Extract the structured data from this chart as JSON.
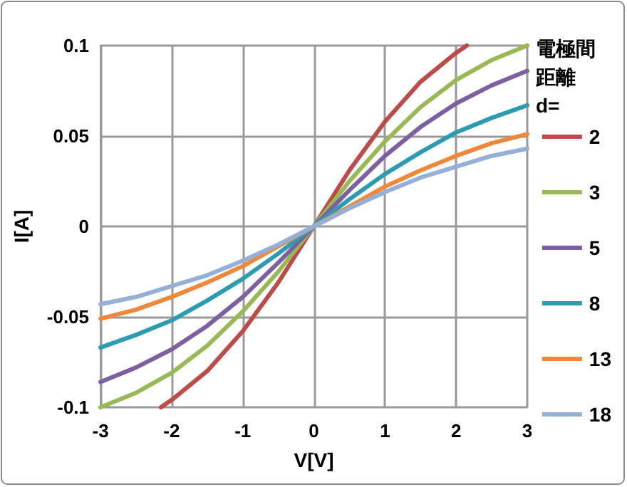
{
  "chart_data": {
    "type": "line",
    "xlabel": "V[V]",
    "ylabel": "I[A]",
    "legend_title": "電極間距離d=",
    "legend": "right",
    "grid": true,
    "marker": "none",
    "line_style": "solid",
    "x": [
      -3,
      -2.5,
      -2,
      -1.5,
      -1,
      -0.5,
      0,
      0.5,
      1,
      1.5,
      2,
      2.5,
      3
    ],
    "xlim": [
      -3,
      3
    ],
    "xticks": [
      -3,
      -2,
      -1,
      0,
      1,
      2,
      3
    ],
    "ylim": [
      -0.1,
      0.1
    ],
    "yticks": [
      -0.1,
      -0.05,
      0,
      0.05,
      0.1
    ],
    "series": [
      {
        "name": "2",
        "color": "#be4b48",
        "x": [
          -2.15,
          -2,
          -1.5,
          -1,
          -0.5,
          0,
          0.5,
          1,
          1.5,
          2,
          2.15
        ],
        "values": [
          -0.1,
          -0.096,
          -0.08,
          -0.058,
          -0.031,
          0,
          0.031,
          0.058,
          0.08,
          0.096,
          0.1
        ]
      },
      {
        "name": "3",
        "color": "#98b954",
        "values": [
          -0.1,
          -0.092,
          -0.081,
          -0.066,
          -0.047,
          -0.025,
          0,
          0.025,
          0.047,
          0.066,
          0.081,
          0.092,
          0.1
        ]
      },
      {
        "name": "5",
        "color": "#7d60a0",
        "values": [
          -0.086,
          -0.078,
          -0.068,
          -0.055,
          -0.039,
          -0.02,
          0,
          0.02,
          0.039,
          0.055,
          0.068,
          0.078,
          0.086
        ]
      },
      {
        "name": "8",
        "color": "#2c9cb3",
        "values": [
          -0.067,
          -0.06,
          -0.052,
          -0.041,
          -0.029,
          -0.015,
          0,
          0.015,
          0.029,
          0.041,
          0.052,
          0.06,
          0.067
        ]
      },
      {
        "name": "13",
        "color": "#f0883a",
        "values": [
          -0.051,
          -0.046,
          -0.039,
          -0.031,
          -0.022,
          -0.011,
          0,
          0.011,
          0.022,
          0.031,
          0.039,
          0.046,
          0.051
        ]
      },
      {
        "name": "18",
        "color": "#94afd8",
        "values": [
          -0.043,
          -0.039,
          -0.033,
          -0.027,
          -0.019,
          -0.01,
          0,
          0.01,
          0.019,
          0.027,
          0.033,
          0.039,
          0.043
        ]
      }
    ]
  }
}
